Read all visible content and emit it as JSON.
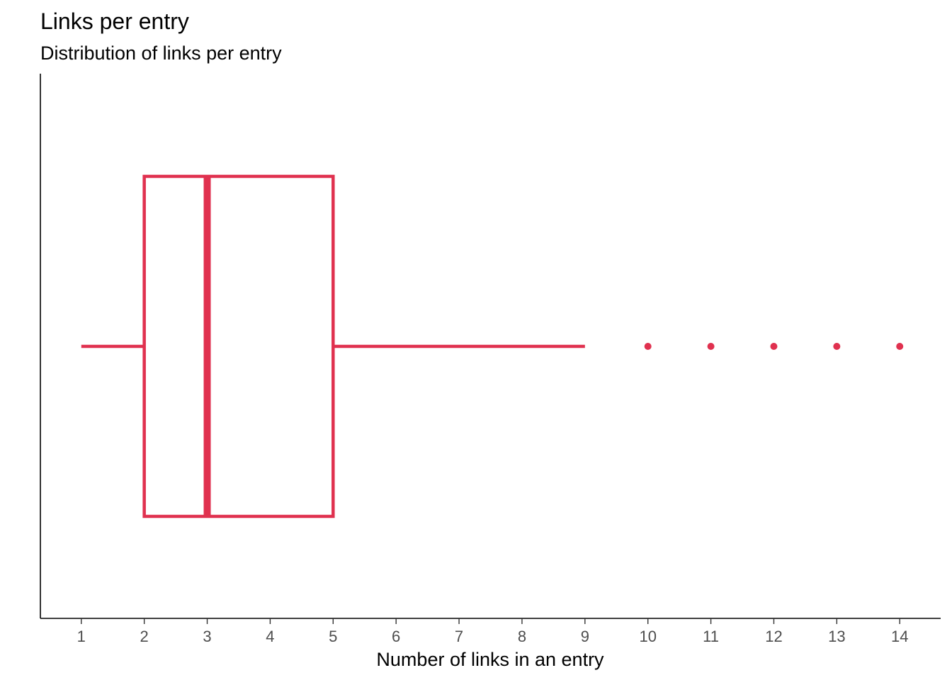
{
  "chart_data": {
    "type": "boxplot",
    "title": "Links per entry",
    "subtitle": "Distribution of links per entry",
    "xlabel": "Number of links in an entry",
    "ylabel": "",
    "xlim": [
      0.35,
      14.65
    ],
    "x_ticks": [
      1,
      2,
      3,
      4,
      5,
      6,
      7,
      8,
      9,
      10,
      11,
      12,
      13,
      14
    ],
    "x_tick_labels": [
      "1",
      "2",
      "3",
      "4",
      "5",
      "6",
      "7",
      "8",
      "9",
      "10",
      "11",
      "12",
      "13",
      "14"
    ],
    "orientation": "horizontal",
    "grid": false,
    "legend": "none",
    "color": "#e0314f",
    "box": {
      "whisker_low": 1,
      "q1": 2,
      "median": 3,
      "q3": 5,
      "whisker_high": 9
    },
    "outliers": [
      10,
      11,
      12,
      13,
      14
    ]
  }
}
